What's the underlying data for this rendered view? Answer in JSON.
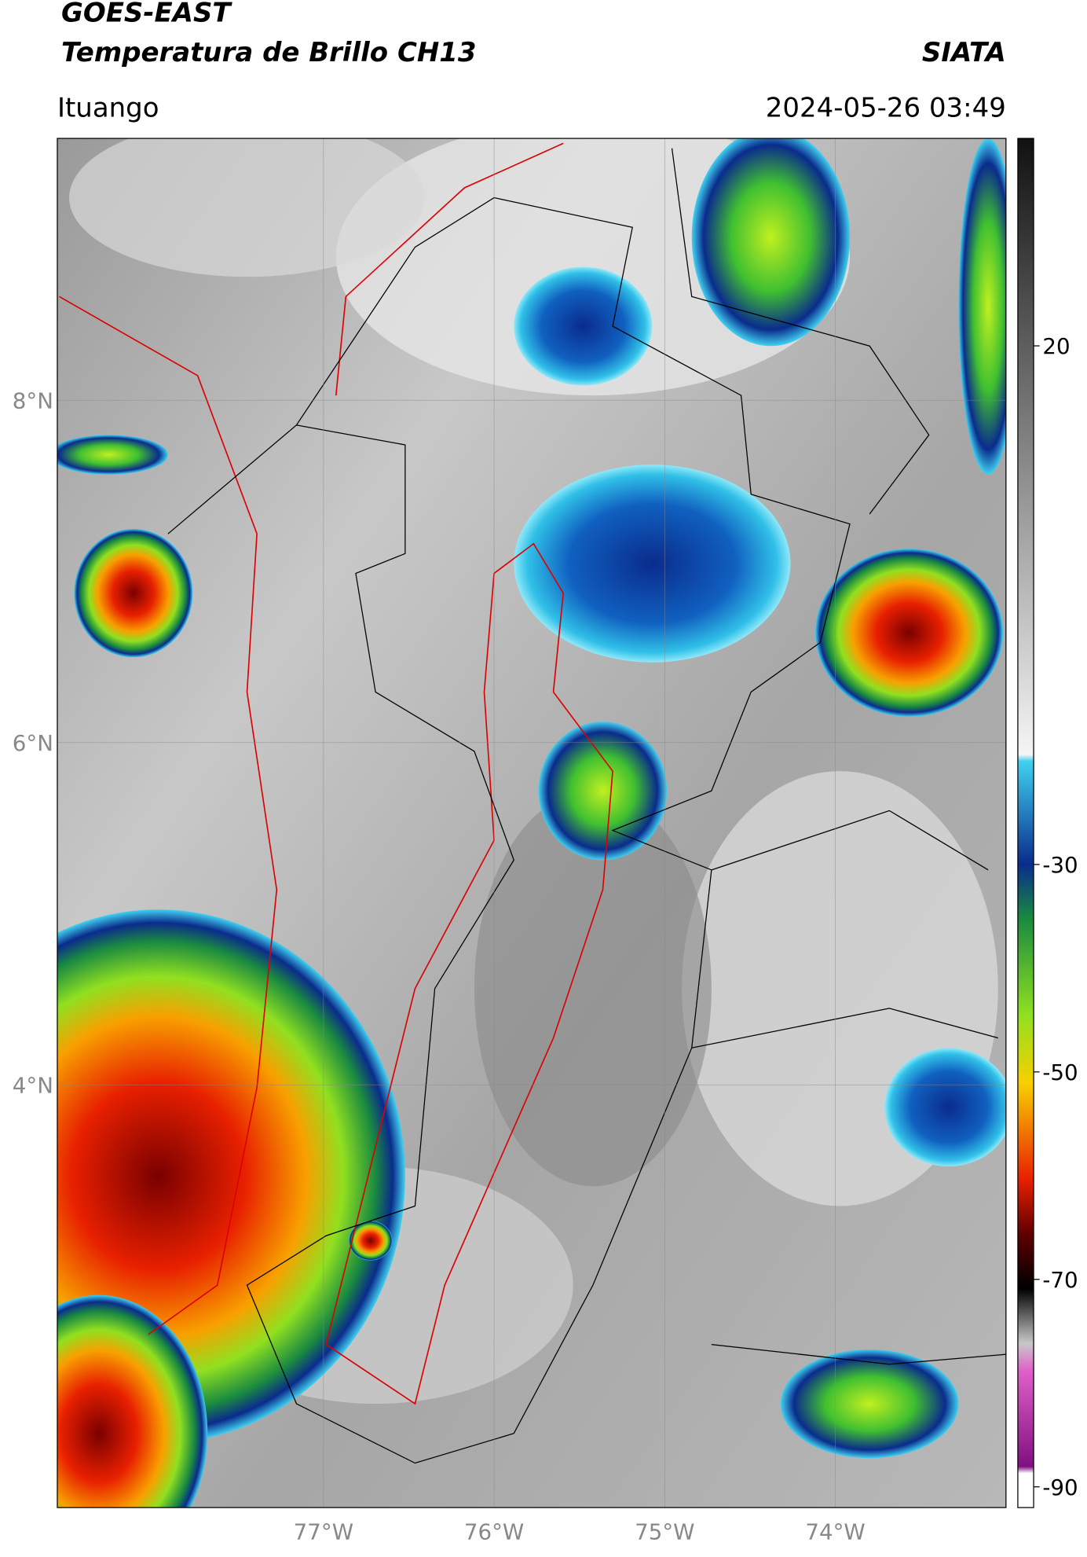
{
  "header": {
    "title_line1": "GOES-EAST",
    "title_line2": "Temperatura de Brillo CH13",
    "source": "SIATA",
    "region": "Ituango",
    "datetime": "2024-05-26 03:49"
  },
  "map": {
    "lat_range": [
      1.53,
      9.53
    ],
    "lon_range": [
      -78.56,
      -73.0
    ],
    "lat_ticks": [
      {
        "value": 8,
        "label": "8°N"
      },
      {
        "value": 6,
        "label": "6°N"
      },
      {
        "value": 4,
        "label": "4°N"
      }
    ],
    "lon_ticks": [
      {
        "value": -77,
        "label": "77°W"
      },
      {
        "value": -76,
        "label": "76°W"
      },
      {
        "value": -75,
        "label": "75°W"
      },
      {
        "value": -74,
        "label": "74°W"
      }
    ]
  },
  "colorbar": {
    "range": [
      -92,
      40
    ],
    "ticks": [
      20,
      -30,
      -50,
      -70,
      -90
    ]
  }
}
